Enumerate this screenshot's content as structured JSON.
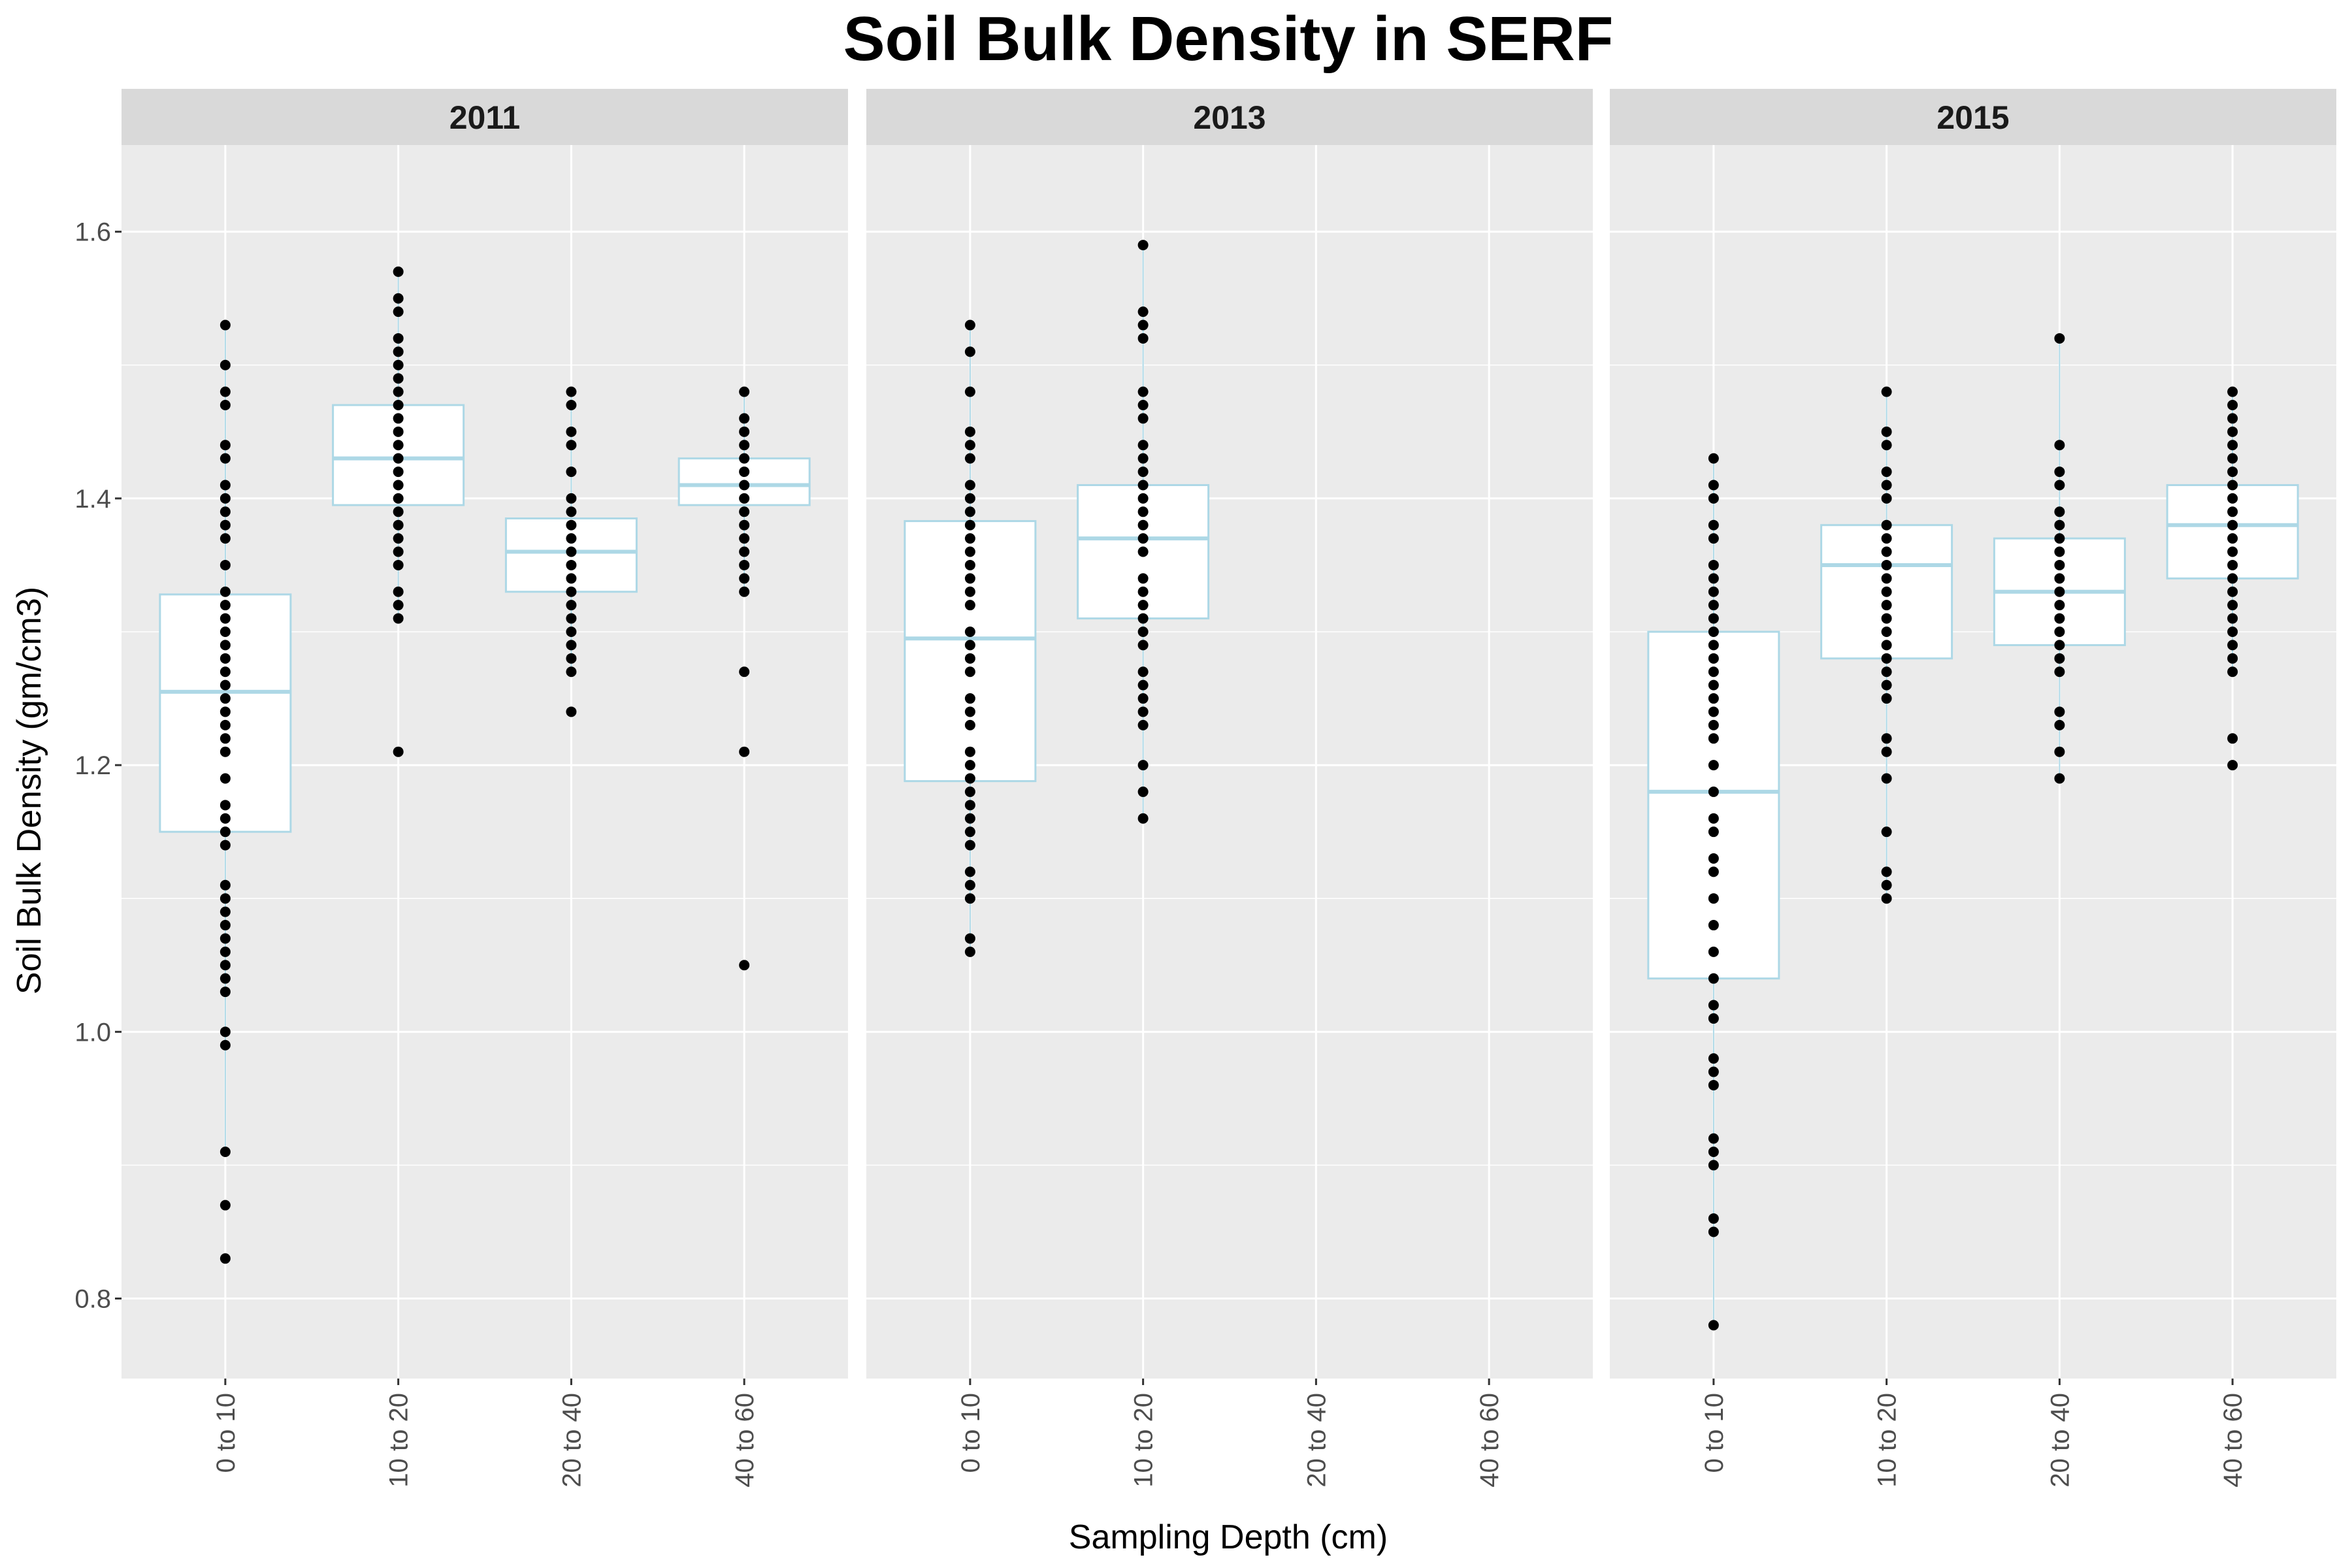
{
  "chart_data": {
    "type": "boxplot",
    "title": "Soil Bulk Density in SERF",
    "xlabel": "Sampling Depth (cm)",
    "ylabel": "Soil Bulk Density (gm/cm3)",
    "categories": [
      "0 to 10",
      "10 to 20",
      "20 to 40",
      "40 to 60"
    ],
    "ylim": [
      0.74,
      1.665
    ],
    "yticks": [
      0.8,
      1.0,
      1.2,
      1.4,
      1.6
    ],
    "ytick_labels": [
      "0.8",
      "1.0",
      "1.2",
      "1.4",
      "1.6"
    ],
    "grid": true,
    "colors": {
      "panel_bg": "#ebebeb",
      "strip_bg": "#d9d9d9",
      "grid": "#ffffff",
      "box_stroke": "#add8e6",
      "box_fill": "#ffffff",
      "point": "#000000"
    },
    "facets": [
      {
        "label": "2011",
        "boxes": [
          {
            "category": "0 to 10",
            "q1": 1.15,
            "median": 1.255,
            "q3": 1.328,
            "whisker_low": 0.91,
            "whisker_high": 1.53,
            "points": [
              1.53,
              1.5,
              1.48,
              1.47,
              1.44,
              1.43,
              1.41,
              1.4,
              1.39,
              1.38,
              1.37,
              1.35,
              1.33,
              1.32,
              1.31,
              1.3,
              1.29,
              1.28,
              1.27,
              1.26,
              1.25,
              1.24,
              1.23,
              1.22,
              1.21,
              1.19,
              1.17,
              1.16,
              1.15,
              1.14,
              1.11,
              1.1,
              1.09,
              1.08,
              1.07,
              1.06,
              1.05,
              1.04,
              1.03,
              1.0,
              0.99,
              0.91,
              0.87,
              0.83
            ]
          },
          {
            "category": "10 to 20",
            "q1": 1.395,
            "median": 1.43,
            "q3": 1.47,
            "whisker_low": 1.31,
            "whisker_high": 1.57,
            "points": [
              1.57,
              1.55,
              1.54,
              1.52,
              1.51,
              1.5,
              1.49,
              1.48,
              1.47,
              1.46,
              1.45,
              1.44,
              1.43,
              1.42,
              1.41,
              1.4,
              1.39,
              1.38,
              1.37,
              1.36,
              1.35,
              1.33,
              1.32,
              1.31,
              1.21
            ]
          },
          {
            "category": "20 to 40",
            "q1": 1.33,
            "median": 1.36,
            "q3": 1.385,
            "whisker_low": 1.27,
            "whisker_high": 1.48,
            "points": [
              1.48,
              1.47,
              1.45,
              1.44,
              1.42,
              1.4,
              1.39,
              1.38,
              1.37,
              1.36,
              1.35,
              1.34,
              1.33,
              1.32,
              1.31,
              1.3,
              1.29,
              1.28,
              1.27,
              1.24
            ]
          },
          {
            "category": "40 to 60",
            "q1": 1.395,
            "median": 1.41,
            "q3": 1.43,
            "whisker_low": 1.33,
            "whisker_high": 1.48,
            "points": [
              1.48,
              1.46,
              1.45,
              1.44,
              1.43,
              1.42,
              1.41,
              1.4,
              1.39,
              1.38,
              1.37,
              1.36,
              1.35,
              1.34,
              1.33,
              1.27,
              1.21,
              1.05
            ]
          }
        ]
      },
      {
        "label": "2013",
        "boxes": [
          {
            "category": "0 to 10",
            "q1": 1.188,
            "median": 1.295,
            "q3": 1.383,
            "whisker_low": 1.06,
            "whisker_high": 1.53,
            "points": [
              1.53,
              1.51,
              1.48,
              1.45,
              1.44,
              1.43,
              1.41,
              1.4,
              1.39,
              1.38,
              1.37,
              1.36,
              1.35,
              1.34,
              1.33,
              1.32,
              1.3,
              1.29,
              1.28,
              1.27,
              1.25,
              1.24,
              1.23,
              1.21,
              1.2,
              1.19,
              1.18,
              1.17,
              1.16,
              1.15,
              1.14,
              1.12,
              1.11,
              1.1,
              1.07,
              1.06
            ]
          },
          {
            "category": "10 to 20",
            "q1": 1.31,
            "median": 1.37,
            "q3": 1.41,
            "whisker_low": 1.16,
            "whisker_high": 1.59,
            "points": [
              1.59,
              1.54,
              1.53,
              1.52,
              1.48,
              1.47,
              1.46,
              1.44,
              1.43,
              1.42,
              1.41,
              1.4,
              1.39,
              1.38,
              1.37,
              1.36,
              1.34,
              1.33,
              1.32,
              1.31,
              1.3,
              1.29,
              1.27,
              1.26,
              1.25,
              1.24,
              1.23,
              1.2,
              1.18,
              1.16
            ]
          }
        ]
      },
      {
        "label": "2015",
        "boxes": [
          {
            "category": "0 to 10",
            "q1": 1.04,
            "median": 1.18,
            "q3": 1.3,
            "whisker_low": 0.78,
            "whisker_high": 1.43,
            "points": [
              1.43,
              1.41,
              1.4,
              1.38,
              1.37,
              1.35,
              1.34,
              1.33,
              1.32,
              1.31,
              1.3,
              1.29,
              1.28,
              1.27,
              1.26,
              1.25,
              1.24,
              1.23,
              1.22,
              1.2,
              1.18,
              1.16,
              1.15,
              1.13,
              1.12,
              1.1,
              1.08,
              1.06,
              1.04,
              1.02,
              1.01,
              0.98,
              0.97,
              0.96,
              0.92,
              0.91,
              0.9,
              0.86,
              0.85,
              0.78
            ]
          },
          {
            "category": "10 to 20",
            "q1": 1.28,
            "median": 1.35,
            "q3": 1.38,
            "whisker_low": 1.1,
            "whisker_high": 1.48,
            "points": [
              1.48,
              1.45,
              1.44,
              1.42,
              1.41,
              1.4,
              1.38,
              1.37,
              1.36,
              1.35,
              1.34,
              1.33,
              1.32,
              1.31,
              1.3,
              1.29,
              1.28,
              1.27,
              1.26,
              1.25,
              1.22,
              1.21,
              1.19,
              1.15,
              1.12,
              1.11,
              1.1
            ]
          },
          {
            "category": "20 to 40",
            "q1": 1.29,
            "median": 1.33,
            "q3": 1.37,
            "whisker_low": 1.19,
            "whisker_high": 1.52,
            "points": [
              1.52,
              1.44,
              1.42,
              1.41,
              1.39,
              1.38,
              1.37,
              1.36,
              1.35,
              1.34,
              1.33,
              1.32,
              1.31,
              1.3,
              1.29,
              1.28,
              1.27,
              1.24,
              1.23,
              1.21,
              1.19
            ]
          },
          {
            "category": "40 to 60",
            "q1": 1.34,
            "median": 1.38,
            "q3": 1.41,
            "whisker_low": 1.27,
            "whisker_high": 1.48,
            "points": [
              1.48,
              1.47,
              1.46,
              1.45,
              1.44,
              1.43,
              1.42,
              1.41,
              1.4,
              1.39,
              1.38,
              1.37,
              1.36,
              1.35,
              1.34,
              1.33,
              1.32,
              1.31,
              1.3,
              1.29,
              1.28,
              1.27,
              1.22,
              1.2
            ]
          }
        ]
      }
    ]
  }
}
